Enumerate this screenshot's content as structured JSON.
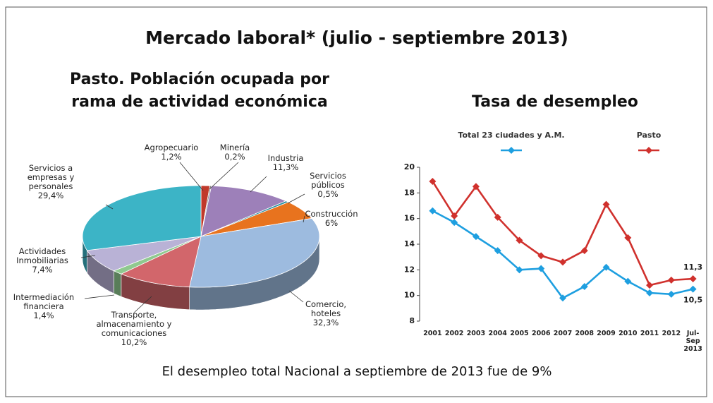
{
  "title": "Mercado laboral* (julio - septiembre 2013)",
  "footnote": "El desempleo total Nacional a septiembre de 2013 fue de 9%",
  "chart_data": [
    {
      "type": "pie",
      "title": "Pasto. Población ocupada por rama de actividad económica",
      "categories": [
        "Agropecuario",
        "Minería",
        "Industria",
        "Servicios públicos",
        "Construcción",
        "Comercio, hoteles",
        "Transporte, almacenamiento y comunicaciones",
        "Intermediación financiera",
        "Actividades Inmobiliarias",
        "Servicios a empresas y personales"
      ],
      "values": [
        1.2,
        0.2,
        11.3,
        0.5,
        6,
        32.3,
        10.2,
        1.4,
        7.4,
        29.4
      ],
      "value_labels": [
        "1,2%",
        "0,2%",
        "11,3%",
        "0,5%",
        "6%",
        "32,3%",
        "10,2%",
        "1,4%",
        "7,4%",
        "29,4%"
      ],
      "colors": [
        "#c0392b",
        "#7a7a7a",
        "#9d80b9",
        "#2a8fa0",
        "#e8731e",
        "#9dbbdf",
        "#d2666b",
        "#8fc98f",
        "#b9b2d6",
        "#3cb4c6"
      ]
    },
    {
      "type": "line",
      "title": "Tasa de desempleo",
      "categories": [
        "2001",
        "2002",
        "2003",
        "2004",
        "2005",
        "2006",
        "2007",
        "2008",
        "2009",
        "2010",
        "2011",
        "2012",
        "Jul-Sep 2013"
      ],
      "series": [
        {
          "name": "Total 23 ciudades y A.M.",
          "color": "#1e9fe0",
          "values": [
            16.6,
            15.7,
            14.6,
            13.5,
            12.0,
            12.1,
            9.8,
            10.7,
            12.2,
            11.1,
            10.2,
            10.1,
            10.5
          ],
          "value_labels": [
            null,
            null,
            null,
            null,
            null,
            null,
            null,
            null,
            null,
            null,
            null,
            null,
            "10,5"
          ]
        },
        {
          "name": "Pasto",
          "color": "#d0312d",
          "values": [
            18.9,
            16.2,
            18.5,
            16.1,
            14.3,
            13.1,
            12.6,
            13.5,
            17.1,
            14.5,
            10.8,
            11.2,
            11.3
          ],
          "value_labels": [
            null,
            null,
            null,
            null,
            null,
            null,
            null,
            null,
            null,
            null,
            null,
            null,
            "11,3"
          ]
        }
      ],
      "ylim": [
        8,
        20
      ],
      "yticks": [
        8,
        10,
        12,
        14,
        16,
        18,
        20
      ],
      "grid": false
    }
  ]
}
